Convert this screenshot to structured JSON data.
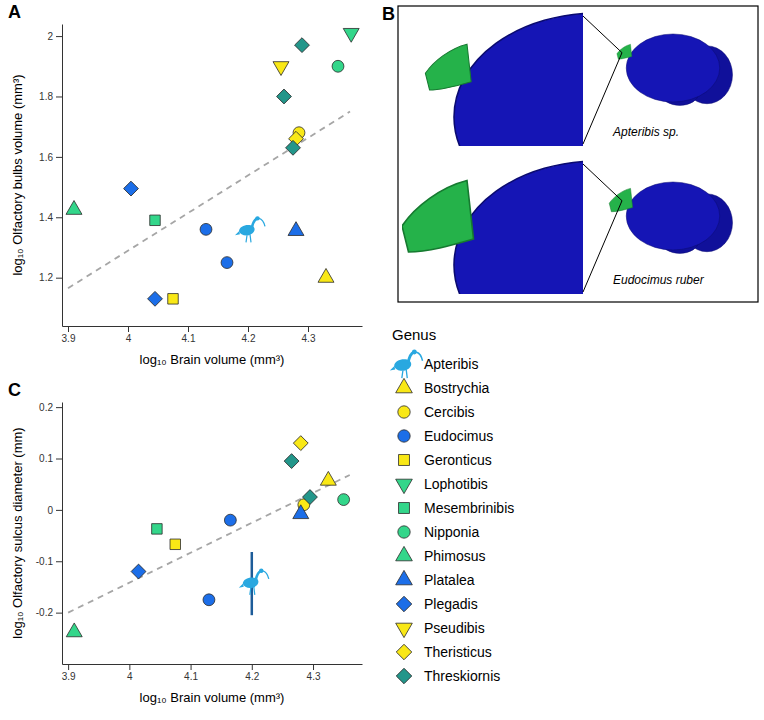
{
  "chart_data": [
    {
      "type": "scatter",
      "title": "A",
      "x_label": "log₁₀ Brain volume (mm³)",
      "y_label": "log₁₀ Olfactory bulbs volume (mm³)",
      "xlim": [
        3.89,
        4.39
      ],
      "ylim": [
        1.04,
        2.04
      ],
      "xticks": [
        3.9,
        4,
        4.1,
        4.2,
        4.3
      ],
      "yticks": [
        1.2,
        1.4,
        1.6,
        1.8,
        2
      ],
      "legend": "right",
      "legend_title": "Genus",
      "series": [
        {
          "name": "Apteribis",
          "color": "#29a8e0",
          "marker": "ibis",
          "x": [
            4.2
          ],
          "values": [
            1.36
          ]
        },
        {
          "name": "Bostrychia",
          "color": "#f9e816",
          "marker": "triangle",
          "x": [
            4.33
          ],
          "values": [
            1.2
          ]
        },
        {
          "name": "Cercibis",
          "color": "#f9e816",
          "marker": "circle",
          "x": [
            4.285
          ],
          "values": [
            1.68
          ]
        },
        {
          "name": "Eudocimus",
          "color": "#1c6ee8",
          "marker": "circle",
          "x": [
            4.13,
            4.165
          ],
          "values": [
            1.36,
            1.25
          ]
        },
        {
          "name": "Geronticus",
          "color": "#f9e816",
          "marker": "square",
          "x": [
            4.075
          ],
          "values": [
            1.13
          ]
        },
        {
          "name": "Lophotibis",
          "color": "#33d68a",
          "marker": "triangle-down",
          "x": [
            4.372
          ],
          "values": [
            2.01
          ]
        },
        {
          "name": "Mesembrinibis",
          "color": "#33d68a",
          "marker": "square",
          "x": [
            4.045
          ],
          "values": [
            1.39
          ]
        },
        {
          "name": "Nipponia",
          "color": "#33d68a",
          "marker": "circle",
          "x": [
            4.35
          ],
          "values": [
            1.9
          ]
        },
        {
          "name": "Phimosus",
          "color": "#33d68a",
          "marker": "triangle",
          "x": [
            3.91
          ],
          "values": [
            1.425
          ]
        },
        {
          "name": "Platalea",
          "color": "#1c6ee8",
          "marker": "triangle",
          "x": [
            4.28
          ],
          "values": [
            1.355
          ]
        },
        {
          "name": "Plegadis",
          "color": "#1c6ee8",
          "marker": "diamond",
          "x": [
            4.005,
            4.045
          ],
          "values": [
            1.495,
            1.13
          ]
        },
        {
          "name": "Pseudibis",
          "color": "#f9e816",
          "marker": "triangle-down",
          "x": [
            4.255
          ],
          "values": [
            1.9
          ]
        },
        {
          "name": "Theristicus",
          "color": "#f9e816",
          "marker": "diamond",
          "x": [
            4.28
          ],
          "values": [
            1.66
          ]
        },
        {
          "name": "Threskiornis",
          "color": "#23968a",
          "marker": "diamond",
          "x": [
            4.26,
            4.275,
            4.29
          ],
          "values": [
            1.8,
            1.63,
            1.97
          ]
        }
      ],
      "fit": {
        "x": [
          3.9,
          4.37
        ],
        "values": [
          1.165,
          1.75
        ],
        "color": "#a6a6a6",
        "line_style": "dashed"
      }
    },
    {
      "type": "scatter",
      "title": "C",
      "x_label": "log₁₀ Brain volume (mm³)",
      "y_label": "log₁₀ Olfactory sulcus diameter (mm)",
      "xlim": [
        3.89,
        4.38
      ],
      "ylim": [
        -0.3,
        0.21
      ],
      "xticks": [
        3.9,
        4,
        4.1,
        4.2,
        4.3
      ],
      "yticks": [
        -0.2,
        -0.1,
        0,
        0.1,
        0.2
      ],
      "series": [
        {
          "color": "#29a8e0",
          "marker": "ibis",
          "x": [
            4.2
          ],
          "values": [
            -0.14
          ],
          "error_low": [
            -0.205
          ],
          "error_high": [
            -0.082
          ]
        },
        {
          "color": "#f9e816",
          "marker": "triangle",
          "x": [
            4.325
          ],
          "values": [
            0.057
          ]
        },
        {
          "color": "#f9e816",
          "marker": "circle",
          "x": [
            4.285
          ],
          "values": [
            0.01
          ]
        },
        {
          "color": "#1c6ee8",
          "marker": "circle",
          "x": [
            4.13,
            4.165
          ],
          "values": [
            -0.175,
            -0.02
          ]
        },
        {
          "color": "#f9e816",
          "marker": "square",
          "x": [
            4.075
          ],
          "values": [
            -0.067
          ]
        },
        {
          "color": "#33d68a",
          "marker": "square",
          "x": [
            4.045
          ],
          "values": [
            -0.037
          ]
        },
        {
          "color": "#33d68a",
          "marker": "circle",
          "x": [
            4.35
          ],
          "values": [
            0.02
          ]
        },
        {
          "color": "#33d68a",
          "marker": "triangle",
          "x": [
            3.91
          ],
          "values": [
            -0.238
          ]
        },
        {
          "color": "#1c6ee8",
          "marker": "triangle",
          "x": [
            4.28
          ],
          "values": [
            -0.008
          ]
        },
        {
          "color": "#1c6ee8",
          "marker": "diamond",
          "x": [
            4.015
          ],
          "values": [
            -0.12
          ]
        },
        {
          "color": "#f9e816",
          "marker": "diamond",
          "x": [
            4.28
          ],
          "values": [
            0.13
          ]
        },
        {
          "color": "#23968a",
          "marker": "diamond",
          "x": [
            4.265,
            4.295
          ],
          "values": [
            0.095,
            0.025
          ]
        }
      ],
      "fit": {
        "x": [
          3.9,
          4.36
        ],
        "values": [
          -0.2,
          0.068
        ],
        "color": "#a6a6a6",
        "line_style": "dashed"
      }
    }
  ],
  "panel_b": {
    "title": "B",
    "specimens": [
      "Apteribis sp.",
      "Eudocimus ruber"
    ]
  }
}
